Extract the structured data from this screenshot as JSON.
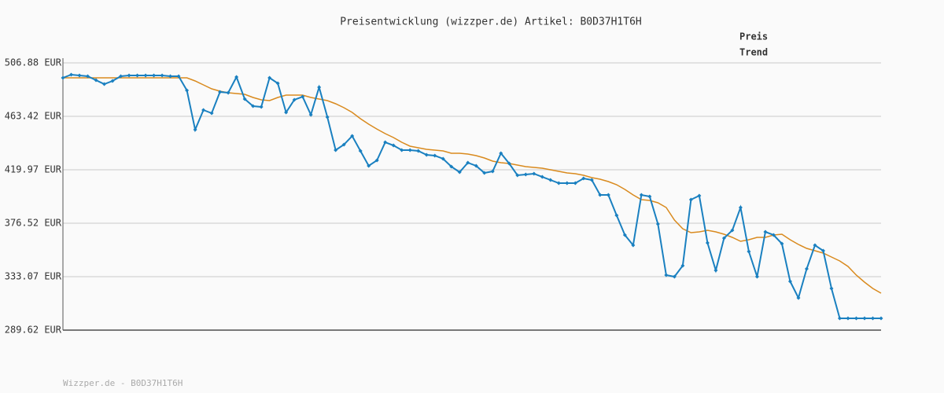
{
  "chart_data": {
    "type": "line",
    "title": "Preisentwicklung (wizzper.de) Artikel: B0D37H1T6H",
    "footer": "Wizzper.de - B0D37H1T6H",
    "legend": "top-right",
    "grid": true,
    "ylim": [
      289.62,
      506.88
    ],
    "yticks": [
      {
        "value": 289.62,
        "label": "289.62 EUR"
      },
      {
        "value": 333.07,
        "label": "333.07 EUR"
      },
      {
        "value": 376.52,
        "label": "376.52 EUR"
      },
      {
        "value": 419.97,
        "label": "419.97 EUR"
      },
      {
        "value": 463.42,
        "label": "463.42 EUR"
      },
      {
        "value": 506.88,
        "label": "506.88 EUR"
      }
    ],
    "series": [
      {
        "name": "Preis",
        "color": "#1a80c0",
        "markers": true,
        "values": [
          494.74,
          497.3,
          496.66,
          496.02,
          492.82,
          489.63,
          492.18,
          496.02,
          496.66,
          496.66,
          496.66,
          496.66,
          496.66,
          496.02,
          496.02,
          484.52,
          452.57,
          468.54,
          465.98,
          483.24,
          482.6,
          495.38,
          477.49,
          471.73,
          471.1,
          494.74,
          490.27,
          466.62,
          476.85,
          479.4,
          464.71,
          487.07,
          462.79,
          435.95,
          440.42,
          447.45,
          435.31,
          423.17,
          427.64,
          442.33,
          439.78,
          435.95,
          435.95,
          435.31,
          432.12,
          431.48,
          428.92,
          422.53,
          418.06,
          425.73,
          423.17,
          417.42,
          418.7,
          433.39,
          425.09,
          415.5,
          416.14,
          416.78,
          414.22,
          411.67,
          409.11,
          409.11,
          409.11,
          412.95,
          411.67,
          399.53,
          399.53,
          382.91,
          366.94,
          358.63,
          399.53,
          398.25,
          375.88,
          334.35,
          333.07,
          342.02,
          395.69,
          398.89,
          360.55,
          338.18,
          364.38,
          370.77,
          389.3,
          353.52,
          333.07,
          369.49,
          366.94,
          359.91,
          329.23,
          315.82,
          339.46,
          358.63,
          354.16,
          323.49,
          299.21,
          299.21,
          299.21,
          299.21,
          299.21,
          299.21
        ]
      },
      {
        "name": "Trend",
        "color": "#d98a1e",
        "markers": false,
        "values": [
          494.74,
          494.74,
          494.74,
          494.74,
          494.74,
          494.74,
          494.74,
          494.74,
          494.74,
          494.74,
          494.74,
          494.74,
          494.74,
          494.74,
          494.74,
          494.74,
          492.18,
          488.99,
          485.79,
          483.88,
          482.6,
          481.96,
          481.32,
          478.76,
          476.85,
          476.21,
          478.76,
          480.68,
          480.68,
          480.68,
          478.76,
          477.49,
          476.21,
          473.65,
          470.46,
          466.62,
          461.51,
          457.04,
          453.06,
          449.37,
          446.17,
          442.33,
          439.15,
          437.87,
          436.59,
          435.95,
          435.31,
          433.39,
          433.39,
          432.75,
          431.48,
          429.56,
          427.0,
          425.73,
          425.09,
          423.81,
          422.53,
          421.89,
          421.25,
          419.97,
          418.7,
          417.42,
          416.78,
          415.5,
          413.58,
          412.31,
          410.39,
          407.83,
          404.0,
          399.53,
          395.69,
          395.05,
          393.14,
          389.3,
          379.08,
          372.05,
          368.86,
          369.49,
          370.77,
          369.49,
          367.58,
          365.02,
          361.83,
          363.11,
          365.02,
          365.02,
          366.94,
          367.58,
          363.11,
          359.27,
          356.08,
          354.16,
          352.24,
          349.05,
          345.85,
          341.38,
          334.35,
          328.6,
          323.49,
          319.65
        ]
      }
    ]
  }
}
